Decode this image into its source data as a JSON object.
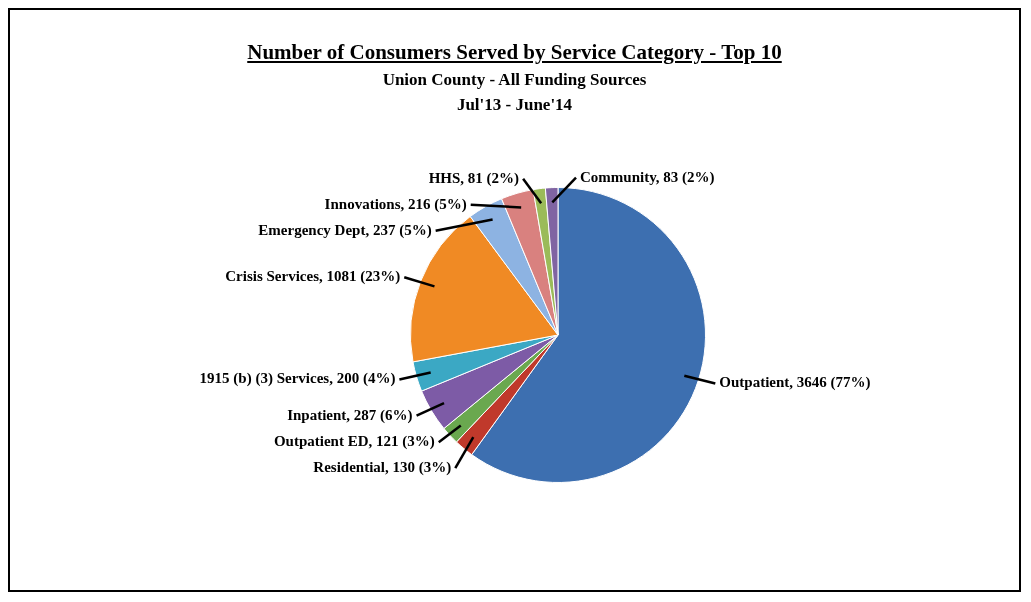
{
  "chart_data": {
    "type": "pie",
    "title": "Number of Consumers Served by Service Category - Top 10",
    "subtitle": "Union County - All Funding Sources\nJul'13 - June'14",
    "categories": [
      "Outpatient",
      "Residential",
      "Outpatient ED",
      "Inpatient",
      "1915 (b) (3) Services",
      "Crisis Services",
      "Emergency Dept",
      "Innovations",
      "HHS",
      "Community"
    ],
    "values": [
      3646,
      130,
      121,
      287,
      200,
      1081,
      237,
      216,
      81,
      83
    ],
    "value_labels": [
      "3646 (77%)",
      "130 (3%)",
      "121 (3%)",
      "287 (6%)",
      "200 (4%)",
      "1081 (23%)",
      "237 (5%)",
      "216 (5%)",
      "81 (2%)",
      "83 (2%)"
    ],
    "colors": [
      "#3d6fb0",
      "#c0392b",
      "#6aa84f",
      "#7d5ba6",
      "#3ba8c4",
      "#f08a24",
      "#8db3e2",
      "#d9817f",
      "#9bbb59",
      "#8064a2"
    ]
  }
}
